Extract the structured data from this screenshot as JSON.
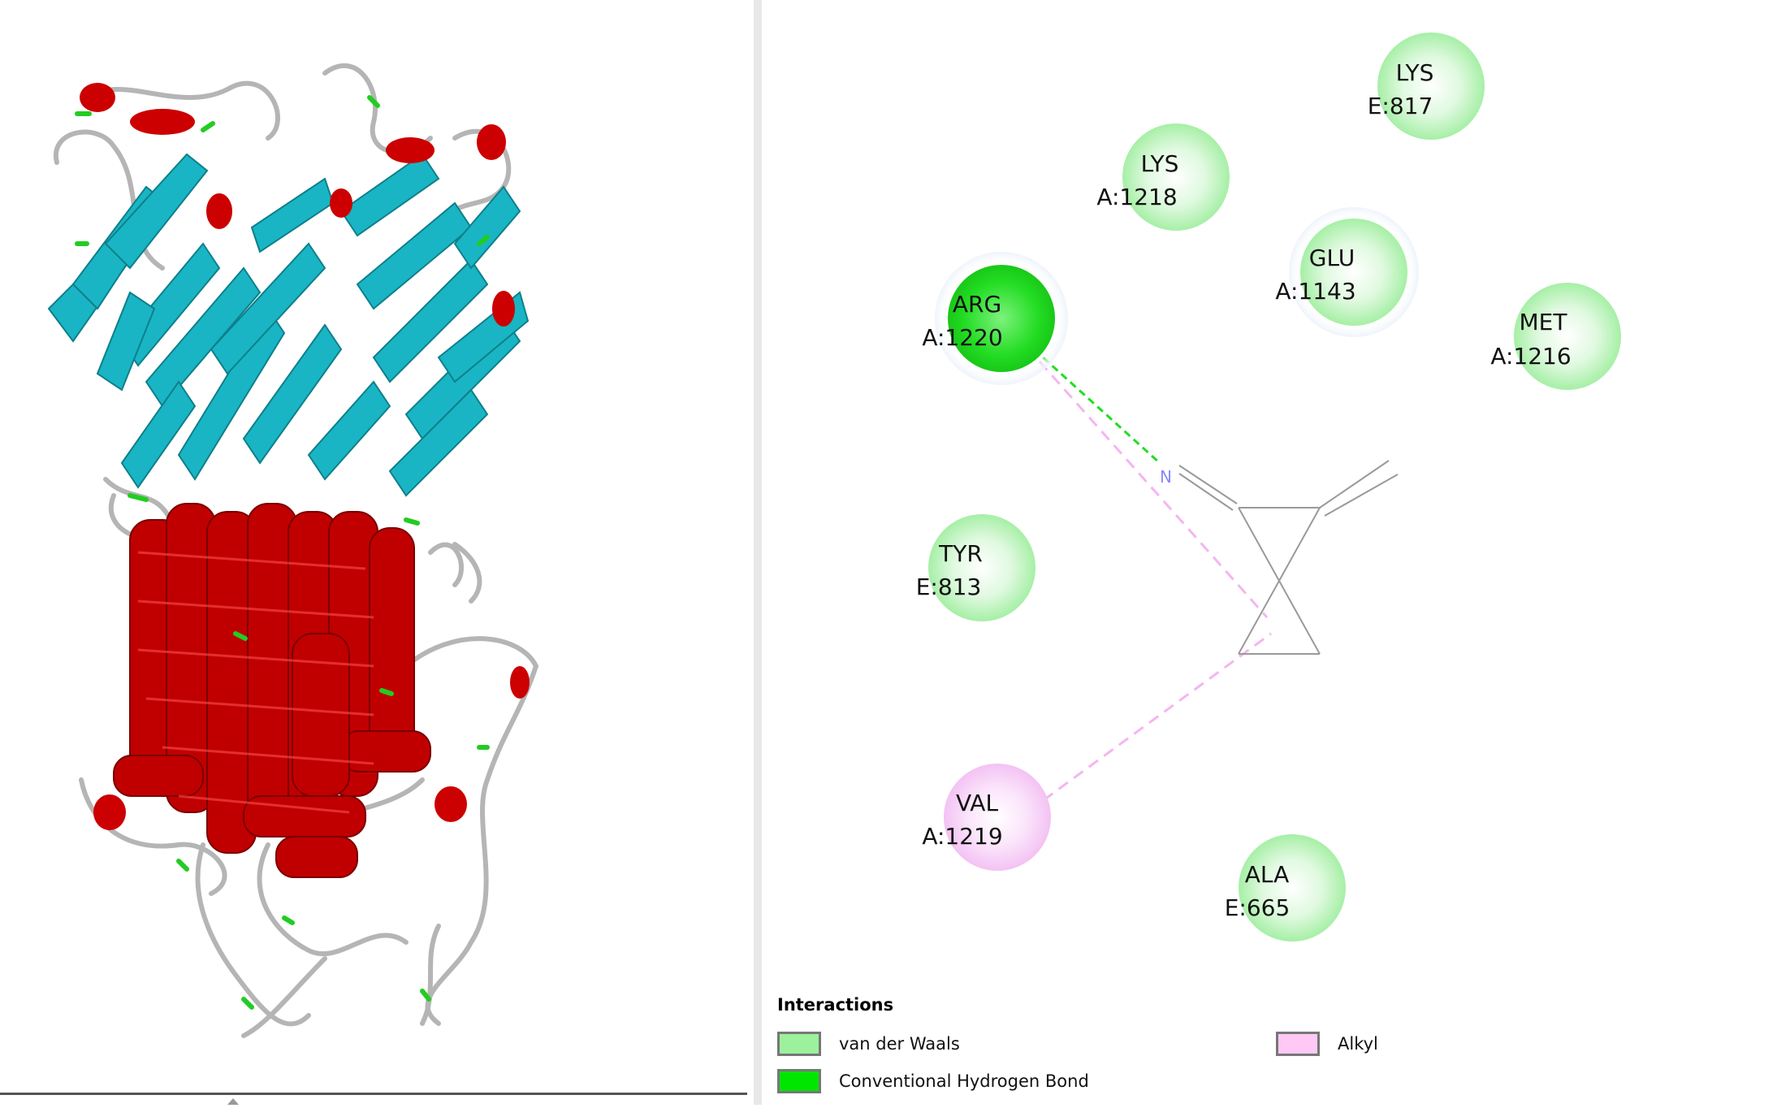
{
  "protein_view": {
    "description_icon": "protein-ribbon-structure"
  },
  "diagram": {
    "residues": [
      {
        "name": "LYS",
        "id": "E:817",
        "type": "van der Waals"
      },
      {
        "name": "LYS",
        "id": "A:1218",
        "type": "van der Waals"
      },
      {
        "name": "GLU",
        "id": "A:1143",
        "type": "van der Waals"
      },
      {
        "name": "ARG",
        "id": "A:1220",
        "type": "Conventional Hydrogen Bond"
      },
      {
        "name": "MET",
        "id": "A:1216",
        "type": "van der Waals"
      },
      {
        "name": "TYR",
        "id": "E:813",
        "type": "van der Waals"
      },
      {
        "name": "VAL",
        "id": "A:1219",
        "type": "Alkyl"
      },
      {
        "name": "ALA",
        "id": "E:665",
        "type": "van der Waals"
      }
    ],
    "ligand_atom_label": "N"
  },
  "legend": {
    "title": "Interactions",
    "items": [
      {
        "label": "van der Waals",
        "color": "#9cf29c"
      },
      {
        "label": "Conventional Hydrogen Bond",
        "color": "#00e600"
      },
      {
        "label": "Alkyl",
        "color": "#ffc8f5"
      }
    ]
  }
}
